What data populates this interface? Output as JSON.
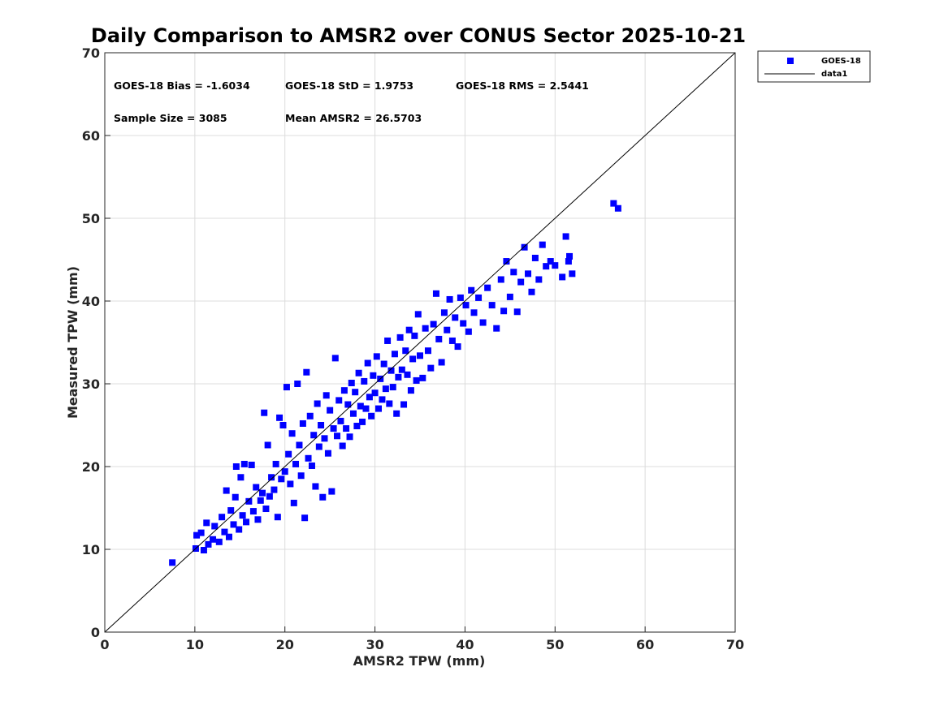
{
  "chart_data": {
    "type": "scatter",
    "title": "Daily Comparison to AMSR2 over CONUS Sector 2025-10-21",
    "xlabel": "AMSR2 TPW (mm)",
    "ylabel": "Measured TPW (mm)",
    "xlim": [
      0,
      70
    ],
    "ylim": [
      0,
      70
    ],
    "xticks": [
      "0",
      "10",
      "20",
      "30",
      "40",
      "50",
      "60",
      "70"
    ],
    "yticks": [
      "0",
      "10",
      "20",
      "30",
      "40",
      "50",
      "60",
      "70"
    ],
    "grid": true,
    "legend_position": "outside-top-right",
    "colors": {
      "series": "#0000ff",
      "reference": "#000000",
      "grid": "#dcdcdc",
      "axis": "#262626"
    },
    "stats": {
      "bias": "GOES-18 Bias = -1.6034",
      "std": "GOES-18 StD = 1.9753",
      "rms": "GOES-18 RMS = 2.5441",
      "sample_size": "Sample Size = 3085",
      "mean": "Mean AMSR2 = 26.5703"
    },
    "series": [
      {
        "name": "GOES-18",
        "marker": "square",
        "points": [
          [
            7.5,
            8.4
          ],
          [
            10.1,
            10.1
          ],
          [
            10.2,
            11.7
          ],
          [
            10.7,
            12.0
          ],
          [
            11.0,
            9.9
          ],
          [
            11.3,
            13.2
          ],
          [
            11.5,
            10.6
          ],
          [
            12.0,
            11.2
          ],
          [
            12.2,
            12.8
          ],
          [
            12.7,
            10.9
          ],
          [
            13.0,
            13.9
          ],
          [
            13.3,
            12.1
          ],
          [
            13.5,
            17.1
          ],
          [
            13.8,
            11.5
          ],
          [
            14.0,
            14.7
          ],
          [
            14.3,
            13.0
          ],
          [
            14.5,
            16.3
          ],
          [
            14.6,
            20.0
          ],
          [
            14.9,
            12.4
          ],
          [
            15.1,
            18.7
          ],
          [
            15.3,
            14.1
          ],
          [
            15.5,
            20.3
          ],
          [
            15.7,
            13.3
          ],
          [
            16.0,
            15.8
          ],
          [
            16.3,
            20.2
          ],
          [
            16.5,
            14.6
          ],
          [
            16.8,
            17.5
          ],
          [
            17.0,
            13.6
          ],
          [
            17.3,
            15.9
          ],
          [
            17.5,
            16.8
          ],
          [
            17.7,
            26.5
          ],
          [
            17.9,
            14.9
          ],
          [
            18.1,
            22.6
          ],
          [
            18.3,
            16.4
          ],
          [
            18.5,
            18.7
          ],
          [
            18.8,
            17.2
          ],
          [
            19.0,
            20.3
          ],
          [
            19.2,
            13.9
          ],
          [
            19.4,
            25.9
          ],
          [
            19.6,
            18.5
          ],
          [
            19.8,
            25.0
          ],
          [
            20.0,
            19.4
          ],
          [
            20.2,
            29.6
          ],
          [
            20.4,
            21.5
          ],
          [
            20.6,
            17.9
          ],
          [
            20.8,
            24.0
          ],
          [
            21.0,
            15.6
          ],
          [
            21.2,
            20.3
          ],
          [
            21.4,
            30.0
          ],
          [
            21.6,
            22.6
          ],
          [
            21.8,
            18.9
          ],
          [
            22.0,
            25.2
          ],
          [
            22.2,
            13.8
          ],
          [
            22.4,
            31.4
          ],
          [
            22.6,
            21.0
          ],
          [
            22.8,
            26.1
          ],
          [
            23.0,
            20.1
          ],
          [
            23.2,
            23.8
          ],
          [
            23.4,
            17.6
          ],
          [
            23.6,
            27.6
          ],
          [
            23.8,
            22.4
          ],
          [
            24.0,
            25.0
          ],
          [
            24.2,
            16.3
          ],
          [
            24.4,
            23.4
          ],
          [
            24.6,
            28.6
          ],
          [
            24.8,
            21.6
          ],
          [
            25.0,
            26.8
          ],
          [
            25.2,
            17.0
          ],
          [
            25.4,
            24.6
          ],
          [
            25.6,
            33.1
          ],
          [
            25.8,
            23.7
          ],
          [
            26.0,
            28.0
          ],
          [
            26.2,
            25.5
          ],
          [
            26.4,
            22.5
          ],
          [
            26.6,
            29.2
          ],
          [
            26.8,
            24.6
          ],
          [
            27.0,
            27.5
          ],
          [
            27.2,
            23.6
          ],
          [
            27.4,
            30.1
          ],
          [
            27.6,
            26.4
          ],
          [
            27.8,
            29.0
          ],
          [
            28.0,
            24.9
          ],
          [
            28.2,
            31.3
          ],
          [
            28.4,
            27.3
          ],
          [
            28.6,
            25.4
          ],
          [
            28.8,
            30.3
          ],
          [
            29.0,
            27.0
          ],
          [
            29.2,
            32.5
          ],
          [
            29.4,
            28.4
          ],
          [
            29.6,
            26.1
          ],
          [
            29.8,
            31.0
          ],
          [
            30.0,
            28.9
          ],
          [
            30.2,
            33.3
          ],
          [
            30.4,
            27.0
          ],
          [
            30.6,
            30.6
          ],
          [
            30.8,
            28.1
          ],
          [
            31.0,
            32.4
          ],
          [
            31.2,
            29.4
          ],
          [
            31.4,
            35.2
          ],
          [
            31.6,
            27.6
          ],
          [
            31.8,
            31.6
          ],
          [
            32.0,
            29.6
          ],
          [
            32.2,
            33.6
          ],
          [
            32.4,
            26.4
          ],
          [
            32.6,
            30.8
          ],
          [
            32.8,
            35.6
          ],
          [
            33.0,
            31.7
          ],
          [
            33.2,
            27.5
          ],
          [
            33.4,
            34.0
          ],
          [
            33.6,
            31.1
          ],
          [
            33.8,
            36.5
          ],
          [
            34.0,
            29.2
          ],
          [
            34.2,
            33.0
          ],
          [
            34.4,
            35.8
          ],
          [
            34.6,
            30.4
          ],
          [
            34.8,
            38.4
          ],
          [
            35.0,
            33.4
          ],
          [
            35.3,
            30.7
          ],
          [
            35.6,
            36.7
          ],
          [
            35.9,
            34.0
          ],
          [
            36.2,
            31.9
          ],
          [
            36.5,
            37.2
          ],
          [
            36.8,
            40.9
          ],
          [
            37.1,
            35.4
          ],
          [
            37.4,
            32.6
          ],
          [
            37.7,
            38.6
          ],
          [
            38.0,
            36.5
          ],
          [
            38.3,
            40.2
          ],
          [
            38.6,
            35.2
          ],
          [
            38.9,
            38.0
          ],
          [
            39.2,
            34.5
          ],
          [
            39.5,
            40.4
          ],
          [
            39.8,
            37.3
          ],
          [
            40.1,
            39.5
          ],
          [
            40.4,
            36.3
          ],
          [
            40.7,
            41.3
          ],
          [
            41.0,
            38.6
          ],
          [
            41.5,
            40.4
          ],
          [
            42.0,
            37.4
          ],
          [
            42.5,
            41.6
          ],
          [
            43.0,
            39.5
          ],
          [
            43.5,
            36.7
          ],
          [
            44.0,
            42.6
          ],
          [
            44.3,
            38.8
          ],
          [
            44.6,
            44.8
          ],
          [
            45.0,
            40.5
          ],
          [
            45.4,
            43.5
          ],
          [
            45.8,
            38.7
          ],
          [
            46.2,
            42.3
          ],
          [
            46.6,
            46.5
          ],
          [
            47.0,
            43.3
          ],
          [
            47.4,
            41.1
          ],
          [
            47.8,
            45.2
          ],
          [
            48.2,
            42.6
          ],
          [
            48.6,
            46.8
          ],
          [
            49.0,
            44.2
          ],
          [
            49.5,
            44.8
          ],
          [
            50.0,
            44.3
          ],
          [
            50.8,
            42.9
          ],
          [
            51.2,
            47.8
          ],
          [
            51.5,
            44.8
          ],
          [
            51.6,
            45.4
          ],
          [
            51.9,
            43.3
          ],
          [
            56.5,
            51.8
          ],
          [
            57.0,
            51.2
          ]
        ]
      },
      {
        "name": "data1",
        "type": "line",
        "points": [
          [
            0,
            0
          ],
          [
            70,
            70
          ]
        ]
      }
    ]
  }
}
